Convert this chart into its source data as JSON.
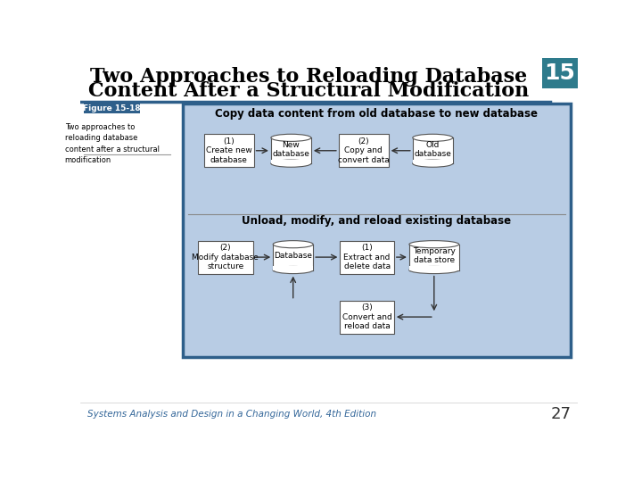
{
  "title_line1": "Two Approaches to Reloading Database",
  "title_line2": "Content After a Structural Modification",
  "title_color": "#000000",
  "title_fontsize": 16,
  "page_num": "15",
  "page_num_bg": "#2e7b8c",
  "slide_num": "27",
  "footer_text": "Systems Analysis and Design in a Changing World, 4th Edition",
  "figure_label": "Figure 15-18",
  "figure_caption": "Two approaches to\nreloading database\ncontent after a structural\nmodification",
  "diagram_bg": "#b8cce4",
  "diagram_border": "#2e5f8a",
  "section1_title": "Copy data content from old database to new database",
  "section2_title": "Unload, modify, and reload existing database",
  "box_fill": "#ffffff",
  "box_border": "#555555",
  "cylinder_fill": "#ffffff",
  "cylinder_border": "#555555",
  "arrow_color": "#333333",
  "text_color": "#000000",
  "label_bg": "#2e5f8a",
  "label_text": "#ffffff",
  "footer_color": "#336699",
  "separator_color": "#2e5f8a"
}
